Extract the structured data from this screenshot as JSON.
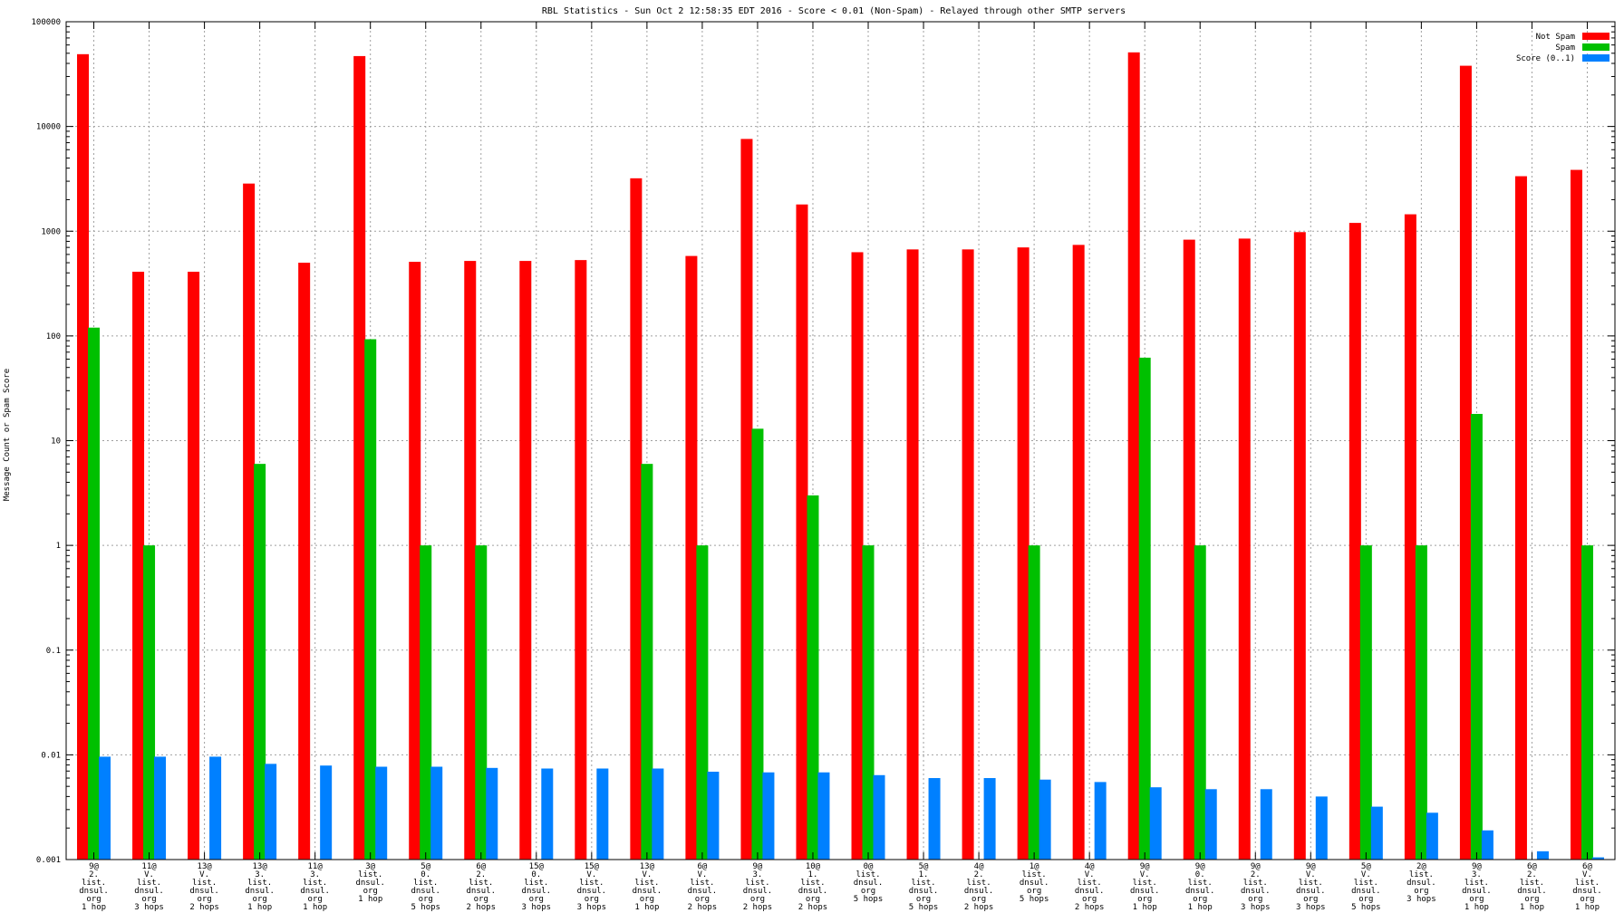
{
  "chart_data": {
    "type": "bar",
    "title": "RBL Statistics - Sun Oct  2 12:58:35 EDT 2016 - Score < 0.01 (Non-Spam) - Relayed through other SMTP servers",
    "ylabel": "Message Count or Spam Score",
    "xlabel": "",
    "yscale": "log",
    "ylim": [
      0.001,
      100000
    ],
    "yticks": [
      "100000",
      "10000",
      "1000",
      "100",
      "10",
      "1",
      "0.1",
      "0.01",
      "0.001"
    ],
    "grid": true,
    "legend_position": "top-right",
    "categories": [
      [
        "9@",
        "2.",
        "list.",
        "dnsul.",
        "org",
        "1 hop"
      ],
      [
        "11@",
        "V.",
        "list.",
        "dnsul.",
        "org",
        "3 hops"
      ],
      [
        "13@",
        "V.",
        "list.",
        "dnsul.",
        "org",
        "2 hops"
      ],
      [
        "13@",
        "3.",
        "list.",
        "dnsul.",
        "org",
        "1 hop"
      ],
      [
        "11@",
        "3.",
        "list.",
        "dnsul.",
        "org",
        "1 hop"
      ],
      [
        "3@",
        "list.",
        "dnsul.",
        "org",
        "1 hop"
      ],
      [
        "5@",
        "0.",
        "list.",
        "dnsul.",
        "org",
        "5 hops"
      ],
      [
        "6@",
        "2.",
        "list.",
        "dnsul.",
        "org",
        "2 hops"
      ],
      [
        "15@",
        "0.",
        "list.",
        "dnsul.",
        "org",
        "3 hops"
      ],
      [
        "15@",
        "V.",
        "list.",
        "dnsul.",
        "org",
        "3 hops"
      ],
      [
        "13@",
        "V.",
        "list.",
        "dnsul.",
        "org",
        "1 hop"
      ],
      [
        "6@",
        "V.",
        "list.",
        "dnsul.",
        "org",
        "2 hops"
      ],
      [
        "9@",
        "3.",
        "list.",
        "dnsul.",
        "org",
        "2 hops"
      ],
      [
        "10@",
        "1.",
        "list.",
        "dnsul.",
        "org",
        "2 hops"
      ],
      [
        "0@",
        "list.",
        "dnsul.",
        "org",
        "5 hops"
      ],
      [
        "5@",
        "1.",
        "list.",
        "dnsul.",
        "org",
        "5 hops"
      ],
      [
        "4@",
        "2.",
        "list.",
        "dnsul.",
        "org",
        "2 hops"
      ],
      [
        "1@",
        "list.",
        "dnsul.",
        "org",
        "5 hops"
      ],
      [
        "4@",
        "V.",
        "list.",
        "dnsul.",
        "org",
        "2 hops"
      ],
      [
        "9@",
        "V.",
        "list.",
        "dnsul.",
        "org",
        "1 hop"
      ],
      [
        "9@",
        "0.",
        "list.",
        "dnsul.",
        "org",
        "1 hop"
      ],
      [
        "9@",
        "2.",
        "list.",
        "dnsul.",
        "org",
        "3 hops"
      ],
      [
        "9@",
        "V.",
        "list.",
        "dnsul.",
        "org",
        "3 hops"
      ],
      [
        "5@",
        "V.",
        "list.",
        "dnsul.",
        "org",
        "5 hops"
      ],
      [
        "2@",
        "list.",
        "dnsul.",
        "org",
        "3 hops"
      ],
      [
        "9@",
        "3.",
        "list.",
        "dnsul.",
        "org",
        "1 hop"
      ],
      [
        "6@",
        "2.",
        "list.",
        "dnsul.",
        "org",
        "1 hop"
      ],
      [
        "6@",
        "V.",
        "list.",
        "dnsul.",
        "org",
        "1 hop"
      ]
    ],
    "series": [
      {
        "name": "Not Spam",
        "color": "#ff0000",
        "values": [
          49000,
          410,
          410,
          2850,
          500,
          47000,
          510,
          520,
          520,
          530,
          3200,
          580,
          7600,
          1800,
          630,
          670,
          670,
          700,
          740,
          51000,
          830,
          850,
          980,
          1200,
          1450,
          38000,
          3350,
          3850
        ]
      },
      {
        "name": "Spam",
        "color": "#00c000",
        "values": [
          120,
          1,
          null,
          6,
          null,
          93,
          1,
          1,
          null,
          null,
          6,
          1,
          13,
          3,
          1,
          null,
          null,
          1,
          null,
          62,
          1,
          null,
          null,
          1,
          1,
          18,
          null,
          1
        ]
      },
      {
        "name": "Score (0..1)",
        "color": "#0080ff",
        "values": [
          0.0096,
          0.0096,
          0.0096,
          0.0082,
          0.0079,
          0.0077,
          0.0077,
          0.0075,
          0.0074,
          0.0074,
          0.0074,
          0.0069,
          0.0068,
          0.0068,
          0.0064,
          0.006,
          0.006,
          0.0058,
          0.0055,
          0.0049,
          0.0047,
          0.0047,
          0.004,
          0.0032,
          0.0028,
          0.0019,
          0.0012,
          0.00105
        ]
      }
    ]
  }
}
